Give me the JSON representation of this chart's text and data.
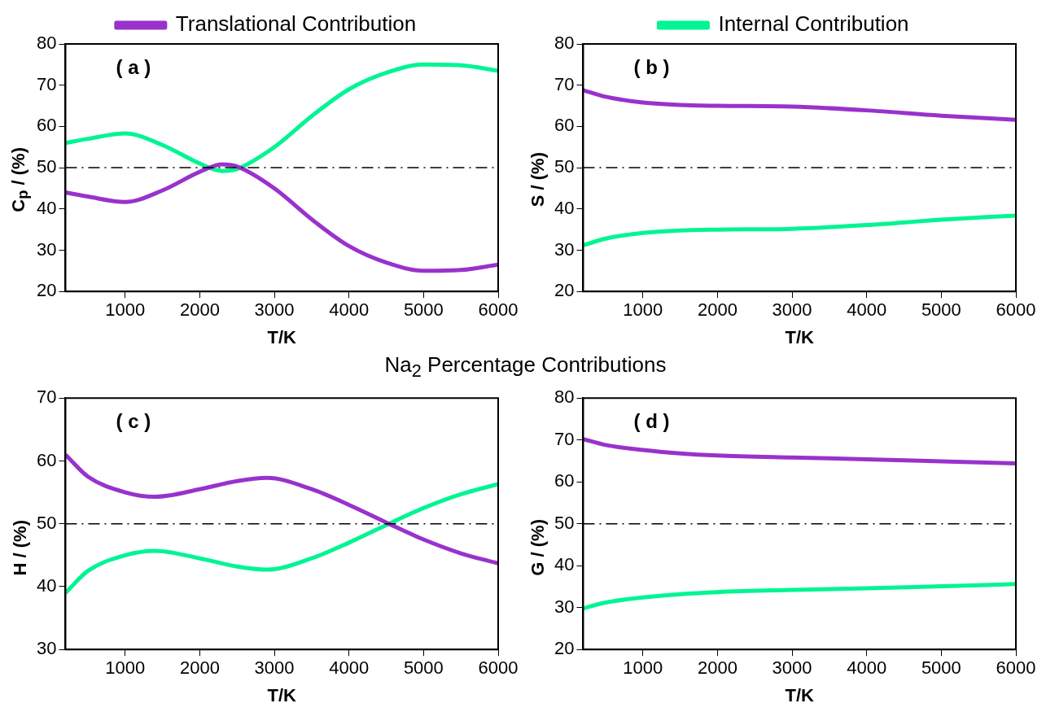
{
  "chart_data": [
    {
      "type": "line",
      "xlabel": "T/K",
      "ylabel": "C$_{p}$ / (%)",
      "x": [
        200,
        500,
        1000,
        1500,
        2000,
        2300,
        2500,
        3000,
        3500,
        4000,
        4500,
        5000,
        5500,
        6000
      ],
      "xlim": [
        200,
        6000
      ],
      "xticks": [
        1000,
        2000,
        3000,
        4000,
        5000,
        6000
      ],
      "ylim": [
        20,
        80
      ],
      "yticks": [
        20,
        30,
        40,
        50,
        60,
        70,
        80
      ],
      "grid": false,
      "legend": "top",
      "annotations": [
        "( a )"
      ],
      "ref_lines": [
        {
          "axis": "y",
          "value": 50,
          "color": "#000000",
          "line_style": "dashdot"
        }
      ],
      "series": [
        {
          "name": "Translational Contribution",
          "color": "#9932cc",
          "values": [
            44,
            43,
            41.7,
            44.5,
            49,
            50.8,
            50.3,
            45,
            37.5,
            31,
            27,
            25,
            25.2,
            26.5
          ]
        },
        {
          "color": "#00f593",
          "values": [
            56,
            57,
            58.3,
            55.5,
            51,
            49.2,
            49.7,
            55,
            62.5,
            69,
            73,
            75,
            74.8,
            73.5
          ]
        }
      ]
    },
    {
      "type": "line",
      "xlabel": "T/K",
      "ylabel": "S / (%)",
      "x": [
        200,
        500,
        1000,
        1500,
        2000,
        3000,
        4000,
        5000,
        6000
      ],
      "xlim": [
        200,
        6000
      ],
      "xticks": [
        1000,
        2000,
        3000,
        4000,
        5000,
        6000
      ],
      "ylim": [
        20,
        80
      ],
      "yticks": [
        20,
        30,
        40,
        50,
        60,
        70,
        80
      ],
      "grid": false,
      "legend": "top",
      "annotations": [
        "( b )"
      ],
      "ref_lines": [
        {
          "axis": "y",
          "value": 50,
          "color": "#000000",
          "line_style": "dashdot"
        }
      ],
      "series": [
        {
          "color": "#9932cc",
          "values": [
            68.8,
            67.2,
            65.8,
            65.2,
            65,
            64.8,
            63.9,
            62.6,
            61.6
          ]
        },
        {
          "name": "Internal Contribution",
          "color": "#00f593",
          "values": [
            31.2,
            32.8,
            34.2,
            34.8,
            35,
            35.2,
            36.1,
            37.4,
            38.4
          ]
        }
      ]
    },
    {
      "type": "line",
      "title": "Na$_{2}$ Percentage Contributions",
      "xlabel": "T/K",
      "ylabel": "H / (%)",
      "x": [
        200,
        500,
        1000,
        1400,
        2000,
        2500,
        2900,
        3500,
        4000,
        4500,
        5000,
        5500,
        6000
      ],
      "xlim": [
        200,
        6000
      ],
      "xticks": [
        1000,
        2000,
        3000,
        4000,
        5000,
        6000
      ],
      "ylim": [
        30,
        70
      ],
      "yticks": [
        30,
        40,
        50,
        60,
        70
      ],
      "grid": false,
      "annotations": [
        "( c )"
      ],
      "ref_lines": [
        {
          "axis": "y",
          "value": 50,
          "color": "#000000",
          "line_style": "dashdot"
        }
      ],
      "series": [
        {
          "color": "#9932cc",
          "values": [
            61,
            57.5,
            55,
            54.3,
            55.5,
            56.8,
            57.3,
            55.5,
            53,
            50.2,
            47.5,
            45.3,
            43.7
          ]
        },
        {
          "color": "#00f593",
          "values": [
            39,
            42.5,
            45,
            45.7,
            44.5,
            43.2,
            42.7,
            44.5,
            47,
            49.8,
            52.5,
            54.7,
            56.3
          ]
        }
      ]
    },
    {
      "type": "line",
      "xlabel": "T/K",
      "ylabel": "G / (%)",
      "x": [
        200,
        500,
        1000,
        1500,
        2000,
        3000,
        4000,
        5000,
        6000
      ],
      "xlim": [
        200,
        6000
      ],
      "xticks": [
        1000,
        2000,
        3000,
        4000,
        5000,
        6000
      ],
      "ylim": [
        20,
        80
      ],
      "yticks": [
        20,
        30,
        40,
        50,
        60,
        70,
        80
      ],
      "grid": false,
      "annotations": [
        "( d )"
      ],
      "ref_lines": [
        {
          "axis": "y",
          "value": 50,
          "color": "#000000",
          "line_style": "dashdot"
        }
      ],
      "series": [
        {
          "color": "#9932cc",
          "values": [
            70.2,
            68.8,
            67.6,
            66.8,
            66.3,
            65.8,
            65.4,
            64.9,
            64.4
          ]
        },
        {
          "color": "#00f593",
          "values": [
            29.8,
            31.2,
            32.4,
            33.2,
            33.7,
            34.2,
            34.6,
            35.1,
            35.6
          ]
        }
      ]
    }
  ]
}
